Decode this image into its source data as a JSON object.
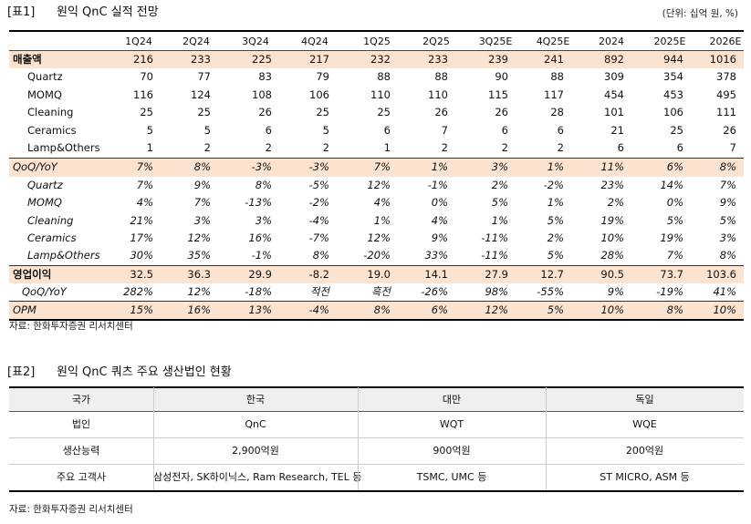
{
  "table1": {
    "tag": "[표1]",
    "title": "원익 QnC 실적 전망",
    "unit": "(단위: 십억 원, %)",
    "columns": [
      "1Q24",
      "2Q24",
      "3Q24",
      "4Q24",
      "1Q25",
      "2Q25",
      "3Q25E",
      "4Q25E",
      "2024",
      "2025E",
      "2026E"
    ],
    "rows": [
      [
        "매출액",
        "216",
        "233",
        "225",
        "217",
        "232",
        "233",
        "239",
        "241",
        "892",
        "944",
        "1016"
      ],
      [
        "Quartz",
        "70",
        "77",
        "83",
        "79",
        "88",
        "88",
        "90",
        "88",
        "309",
        "354",
        "378"
      ],
      [
        "MOMQ",
        "116",
        "124",
        "108",
        "106",
        "110",
        "110",
        "115",
        "117",
        "454",
        "453",
        "495"
      ],
      [
        "Cleaning",
        "25",
        "25",
        "26",
        "25",
        "25",
        "26",
        "26",
        "28",
        "101",
        "106",
        "111"
      ],
      [
        "Ceramics",
        "5",
        "5",
        "6",
        "5",
        "6",
        "7",
        "6",
        "6",
        "21",
        "25",
        "26"
      ],
      [
        "Lamp&Others",
        "1",
        "2",
        "2",
        "2",
        "1",
        "2",
        "2",
        "2",
        "6",
        "6",
        "7"
      ],
      [
        "QoQ/YoY",
        "7%",
        "8%",
        "-3%",
        "-3%",
        "7%",
        "1%",
        "3%",
        "1%",
        "11%",
        "6%",
        "8%"
      ],
      [
        "Quartz",
        "7%",
        "9%",
        "8%",
        "-5%",
        "12%",
        "-1%",
        "2%",
        "-2%",
        "23%",
        "14%",
        "7%"
      ],
      [
        "MOMQ",
        "4%",
        "7%",
        "-13%",
        "-2%",
        "4%",
        "0%",
        "5%",
        "1%",
        "2%",
        "0%",
        "9%"
      ],
      [
        "Cleaning",
        "21%",
        "3%",
        "3%",
        "-4%",
        "1%",
        "4%",
        "1%",
        "5%",
        "19%",
        "5%",
        "5%"
      ],
      [
        "Ceramics",
        "17%",
        "12%",
        "16%",
        "-7%",
        "12%",
        "9%",
        "-11%",
        "2%",
        "10%",
        "19%",
        "3%"
      ],
      [
        "Lamp&Others",
        "30%",
        "35%",
        "-1%",
        "8%",
        "-20%",
        "33%",
        "-11%",
        "5%",
        "28%",
        "7%",
        "8%"
      ],
      [
        "영업이익",
        "32.5",
        "36.3",
        "29.9",
        "-8.2",
        "19.0",
        "14.1",
        "27.9",
        "12.7",
        "90.5",
        "73.7",
        "103.6"
      ],
      [
        "QoQ/YoY",
        "282%",
        "12%",
        "-18%",
        "적전",
        "흑전",
        "-26%",
        "98%",
        "-55%",
        "9%",
        "-19%",
        "41%"
      ],
      [
        "OPM",
        "15%",
        "16%",
        "13%",
        "-4%",
        "8%",
        "6%",
        "12%",
        "5%",
        "10%",
        "8%",
        "10%"
      ]
    ],
    "source": "자료: 한화투자증권 리서치센터"
  },
  "table2": {
    "tag": "[표2]",
    "title": "원익 QnC 쿼츠 주요 생산법인 현황",
    "header": [
      "국가",
      "한국",
      "대만",
      "독일"
    ],
    "rows": [
      [
        "법인",
        "QnC",
        "WQT",
        "WQE"
      ],
      [
        "생산능력",
        "2,900억원",
        "900억원",
        "200억원"
      ],
      [
        "주요 고객사",
        "삼성전자, SK하이닉스, Ram Research, TEL 등",
        "TSMC, UMC 등",
        "ST MICRO, ASM 등"
      ]
    ],
    "source": "자료: 한화투자증권 리서치센터"
  }
}
